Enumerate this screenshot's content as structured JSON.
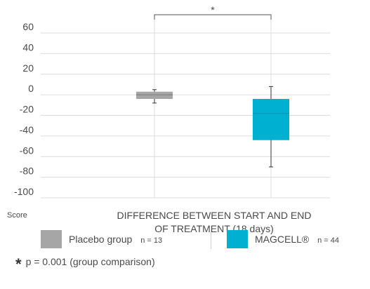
{
  "chart_data": {
    "type": "box",
    "xlabel_line1": "DIFFERENCE BETWEEN START AND END",
    "xlabel_line2": "OF TREATMENT (18 days)",
    "ylabel": "Score",
    "ylim": [
      -100,
      70
    ],
    "yticks": [
      60,
      40,
      20,
      0,
      -20,
      -40,
      -60,
      -80,
      -100
    ],
    "ytick_labels": [
      "60",
      "40",
      "20",
      "0",
      "-20",
      "-40",
      "-60",
      "-80",
      "-100"
    ],
    "grid": true,
    "series": [
      {
        "name": "Placebo group",
        "n_label": "n = 13",
        "color": "#a6a6a6",
        "whisker_low": -8,
        "q1": -4,
        "median": 0,
        "q3": 3,
        "whisker_high": 5
      },
      {
        "name": "MAGCELL®",
        "n_label": "n = 44",
        "color": "#00b0d0",
        "whisker_low": -70,
        "q1": -44,
        "median": -18,
        "q3": -4,
        "whisker_high": 8
      }
    ],
    "significance": {
      "marker": "*",
      "note": "p = 0.001 (group comparison)"
    }
  }
}
